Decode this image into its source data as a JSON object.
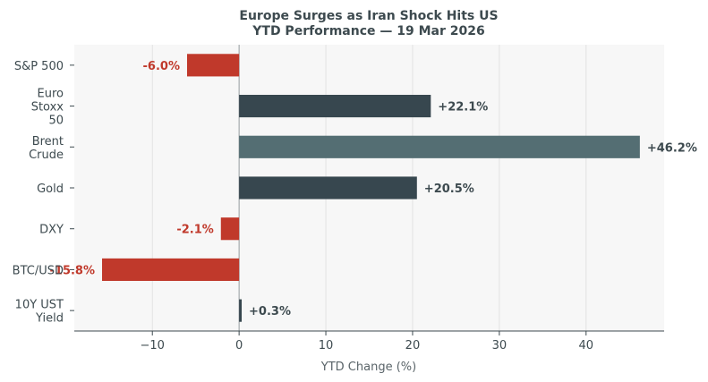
{
  "chart_data": {
    "type": "bar",
    "orientation": "horizontal",
    "title": "Europe Surges as Iran Shock Hits US",
    "subtitle": "YTD Performance — 19 Mar 2026",
    "xlabel": "YTD Change (%)",
    "ylabel": "",
    "xlim": [
      -19,
      49
    ],
    "xticks": [
      -10,
      0,
      10,
      20,
      30,
      40
    ],
    "xtick_labels": [
      "−10",
      "0",
      "10",
      "20",
      "30",
      "40"
    ],
    "grid": "vertical",
    "categories": [
      [
        "S&P 500"
      ],
      [
        "Euro",
        "Stoxx",
        "50"
      ],
      [
        "Brent",
        "Crude"
      ],
      [
        "Gold"
      ],
      [
        "DXY"
      ],
      [
        "BTC/USD"
      ],
      [
        "10Y UST",
        "Yield"
      ]
    ],
    "values": [
      -6.0,
      22.1,
      46.2,
      20.5,
      -2.1,
      -15.8,
      0.3
    ],
    "data_labels": [
      "-6.0%",
      "+22.1%",
      "+46.2%",
      "+20.5%",
      "-2.1%",
      "-15.8%",
      "+0.3%"
    ],
    "bar_colors": [
      "#c0392b",
      "#37474f",
      "#546e73",
      "#37474f",
      "#c0392b",
      "#c0392b",
      "#37474f"
    ],
    "label_colors": [
      "#c0392b",
      "#3d4a4f",
      "#3d4a4f",
      "#3d4a4f",
      "#c0392b",
      "#c0392b",
      "#3d4a4f"
    ],
    "plot_background": "#f7f7f7"
  }
}
